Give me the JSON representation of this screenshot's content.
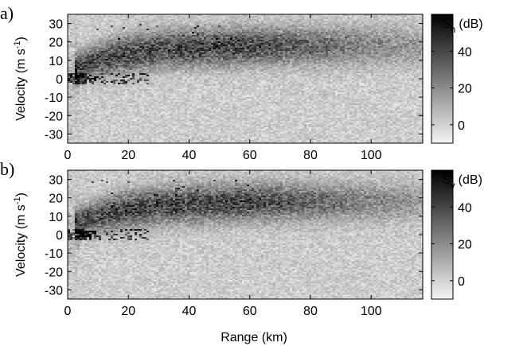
{
  "figure": {
    "background": "#ffffff"
  },
  "x_title": "Range (km)",
  "y_title": {
    "part1": "Velocity (m s",
    "sup": "-1",
    "part2": ")"
  },
  "chart_data": [
    {
      "type": "heatmap",
      "panel_label": "a)",
      "x": {
        "label": "Range (km)",
        "range": [
          0,
          117
        ],
        "ticks": [
          0,
          20,
          40,
          60,
          80,
          100
        ]
      },
      "y": {
        "label": "Velocity (m s-1)",
        "range": [
          -35,
          35
        ],
        "ticks": [
          30,
          20,
          10,
          0,
          -10,
          -20,
          -30
        ]
      },
      "colorbar": {
        "title": {
          "symbol": "S",
          "sub": "h",
          "unit": "(dB)"
        },
        "range": [
          -10,
          60
        ],
        "ticks": [
          40,
          20,
          0
        ],
        "colormap": "gray_reversed"
      },
      "features": {
        "noise_floor_db": [
          -2,
          5
        ],
        "main_band": {
          "center_velocity": [
            4,
            18
          ],
          "peak_db": 50,
          "range_extent_km": [
            3,
            115
          ]
        },
        "near_zero_clutter": {
          "velocity": 0,
          "range_km": [
            0,
            27
          ]
        }
      }
    },
    {
      "type": "heatmap",
      "panel_label": "b)",
      "x": {
        "label": "Range (km)",
        "range": [
          0,
          117
        ],
        "ticks": [
          0,
          20,
          40,
          60,
          80,
          100
        ]
      },
      "y": {
        "label": "Velocity (m s-1)",
        "range": [
          -35,
          35
        ],
        "ticks": [
          30,
          20,
          10,
          0,
          -10,
          -20,
          -30
        ]
      },
      "colorbar": {
        "title": {
          "symbol": "S",
          "sub": "v",
          "unit": "(dB)"
        },
        "range": [
          -10,
          60
        ],
        "ticks": [
          40,
          20,
          0
        ],
        "colormap": "gray_reversed"
      },
      "features": {
        "noise_floor_db": [
          -2,
          5
        ],
        "main_band": {
          "center_velocity": [
            4,
            18
          ],
          "peak_db": 50,
          "range_extent_km": [
            3,
            115
          ]
        },
        "near_zero_clutter": {
          "velocity": 0,
          "range_km": [
            0,
            27
          ]
        }
      }
    }
  ]
}
